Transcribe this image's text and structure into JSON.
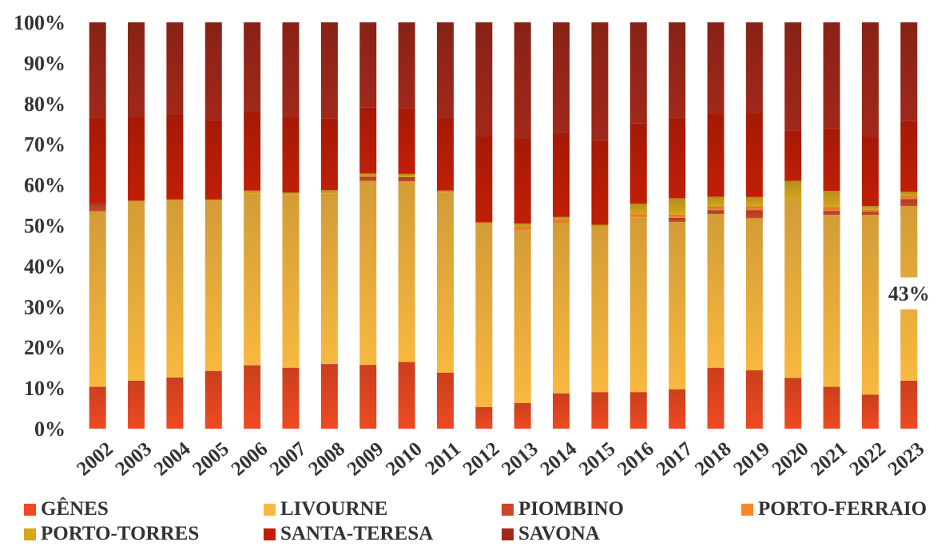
{
  "chart_data": {
    "type": "bar",
    "stacked": true,
    "percent_stacked": true,
    "categories": [
      "2002",
      "2003",
      "2004",
      "2005",
      "2006",
      "2007",
      "2008",
      "2009",
      "2010",
      "2011",
      "2012",
      "2013",
      "2014",
      "2015",
      "2016",
      "2017",
      "2018",
      "2019",
      "2020",
      "2021",
      "2022",
      "2023"
    ],
    "ylim": [
      0,
      100
    ],
    "yticks": [
      "0%",
      "10%",
      "20%",
      "30%",
      "40%",
      "50%",
      "60%",
      "70%",
      "80%",
      "90%",
      "100%"
    ],
    "grid": false,
    "legend_position": "bottom",
    "series": [
      {
        "name": "GÊNES",
        "color": "#EE4A22",
        "values": [
          10.3,
          11.8,
          12.6,
          14.2,
          15.6,
          15.0,
          15.9,
          15.7,
          16.4,
          13.8,
          5.3,
          6.3,
          8.7,
          9.0,
          9.0,
          9.7,
          15.0,
          14.4,
          12.5,
          10.3,
          8.4,
          11.8
        ]
      },
      {
        "name": "LIVOURNE",
        "color": "#F8B840",
        "values": [
          43.2,
          44.3,
          43.8,
          41.8,
          42.2,
          42.6,
          42.0,
          45.3,
          44.5,
          44.2,
          45.0,
          42.5,
          41.8,
          40.5,
          43.0,
          41.2,
          37.8,
          37.4,
          43.8,
          42.3,
          44.2,
          43.0
        ]
      },
      {
        "name": "PIOMBINO",
        "color": "#C8472A",
        "values": [
          2.0,
          0.0,
          0.0,
          0.0,
          0.0,
          0.0,
          0.0,
          1.0,
          1.0,
          0.0,
          0.0,
          0.0,
          0.0,
          0.0,
          0.0,
          1.0,
          1.0,
          2.0,
          0.0,
          1.0,
          0.8,
          1.7
        ]
      },
      {
        "name": "PORTO-FERRAIO",
        "color": "#F7882A",
        "values": [
          0.0,
          0.0,
          0.0,
          0.0,
          0.0,
          0.0,
          0.0,
          0.0,
          0.0,
          0.0,
          0.0,
          0.8,
          0.9,
          0.0,
          0.8,
          0.8,
          0.9,
          0.9,
          0.0,
          0.9,
          0.5,
          0.8
        ]
      },
      {
        "name": "PORTO-TORRES",
        "color": "#D6A61C",
        "values": [
          0.0,
          0.0,
          0.0,
          0.4,
          0.8,
          0.5,
          0.8,
          0.8,
          0.8,
          0.6,
          0.5,
          0.9,
          0.7,
          0.7,
          2.6,
          4.0,
          2.4,
          2.3,
          4.7,
          4.0,
          0.9,
          1.0
        ]
      },
      {
        "name": "SANTA-TERESA",
        "color": "#C11E06",
        "values": [
          21.1,
          20.9,
          20.9,
          19.6,
          19.4,
          18.7,
          17.7,
          16.2,
          16.2,
          18.0,
          21.1,
          21.0,
          20.6,
          20.7,
          19.8,
          19.8,
          20.4,
          20.6,
          12.3,
          15.2,
          17.1,
          17.5
        ]
      },
      {
        "name": "SAVONA",
        "color": "#A0281A",
        "values": [
          23.4,
          23.0,
          22.7,
          24.0,
          22.0,
          23.2,
          23.6,
          21.0,
          21.1,
          23.4,
          28.1,
          28.5,
          27.3,
          29.1,
          24.8,
          23.5,
          22.5,
          22.4,
          26.7,
          26.3,
          28.1,
          24.2
        ]
      }
    ],
    "data_labels": [
      {
        "category": "2023",
        "series": "LIVOURNE",
        "text": "43%"
      }
    ]
  }
}
